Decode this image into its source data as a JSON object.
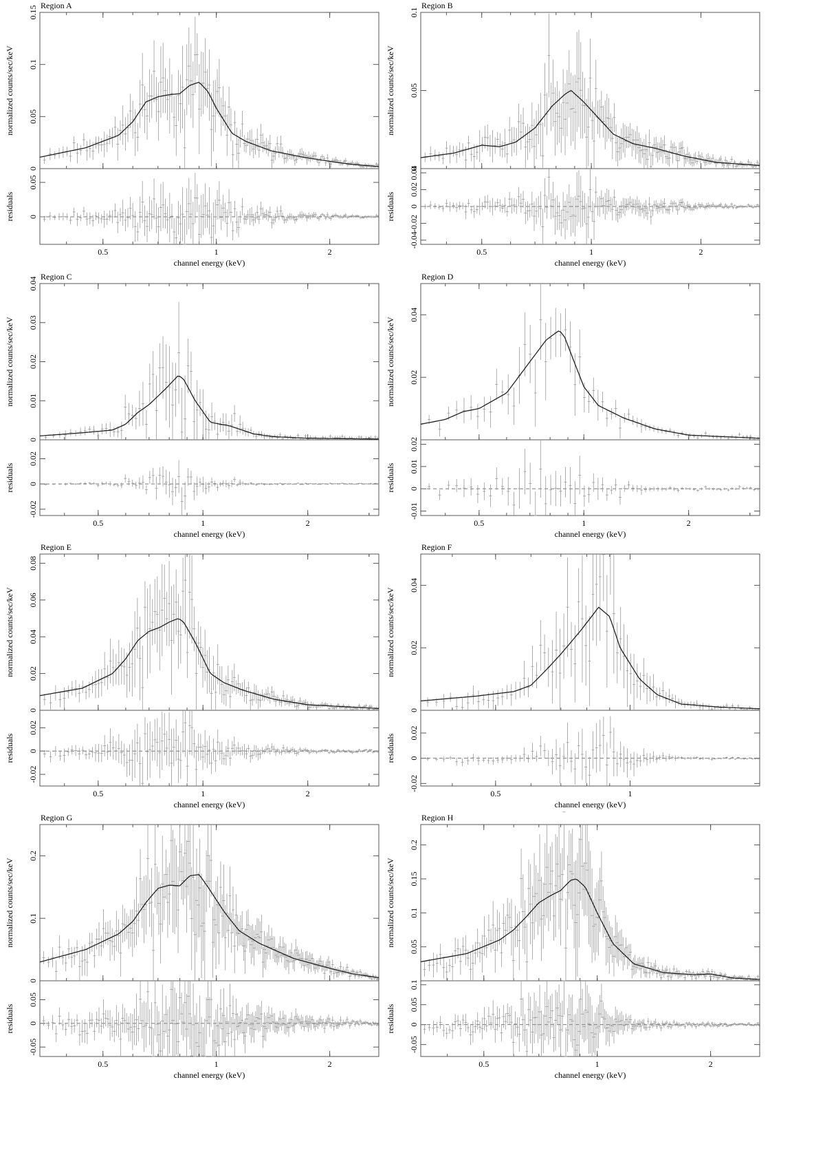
{
  "figure": {
    "xlabel": "channel energy (keV)",
    "ylabel_main": "normalized counts/sec/keV",
    "ylabel_residual": "residuals"
  },
  "chart_data": [
    {
      "title": "Region A",
      "type": "line",
      "x_scale": "log",
      "xlim": [
        0.34,
        2.7
      ],
      "xticks": [
        0.5,
        1,
        2
      ],
      "xticklabels": [
        "0.5",
        "1",
        "2"
      ],
      "ylim": [
        0,
        0.15
      ],
      "yticks": [
        0,
        0.05,
        0.1,
        0.15
      ],
      "yticklabels": [
        "0",
        "0.05",
        "0.1",
        "0.15"
      ],
      "rlim": [
        -0.04,
        0.07
      ],
      "rticks": [
        0,
        0.05
      ],
      "rticklabels": [
        "0",
        "0.05"
      ],
      "model": {
        "x": [
          0.34,
          0.45,
          0.55,
          0.6,
          0.65,
          0.7,
          0.75,
          0.8,
          0.85,
          0.9,
          0.95,
          1.0,
          1.1,
          1.2,
          1.4,
          1.7,
          2.0,
          2.3,
          2.7
        ],
        "y": [
          0.011,
          0.02,
          0.032,
          0.045,
          0.064,
          0.069,
          0.071,
          0.072,
          0.08,
          0.083,
          0.074,
          0.058,
          0.034,
          0.026,
          0.017,
          0.011,
          0.007,
          0.004,
          0.002
        ]
      },
      "noise": 0.3,
      "points": 160,
      "seed": 11
    },
    {
      "title": "Region B",
      "type": "line",
      "x_scale": "log",
      "xlim": [
        0.34,
        2.9
      ],
      "xticks": [
        0.5,
        1,
        2
      ],
      "xticklabels": [
        "0.5",
        "1",
        "2"
      ],
      "ylim": [
        0,
        0.1
      ],
      "yticks": [
        0,
        0.05,
        0.1
      ],
      "yticklabels": [
        "0",
        "0.05",
        "0.1"
      ],
      "rlim": [
        -0.045,
        0.045
      ],
      "rticks": [
        -0.04,
        -0.02,
        0,
        0.02,
        0.04
      ],
      "rticklabels": [
        "-0.04",
        "-0.02",
        "0",
        "0.02",
        "0.04"
      ],
      "model": {
        "x": [
          0.34,
          0.42,
          0.5,
          0.56,
          0.62,
          0.7,
          0.78,
          0.85,
          0.88,
          0.95,
          1.05,
          1.15,
          1.3,
          1.5,
          1.8,
          2.2,
          2.9
        ],
        "y": [
          0.007,
          0.01,
          0.015,
          0.014,
          0.017,
          0.026,
          0.04,
          0.048,
          0.05,
          0.043,
          0.032,
          0.022,
          0.016,
          0.013,
          0.008,
          0.004,
          0.002
        ]
      },
      "noise": 0.4,
      "points": 170,
      "seed": 23
    },
    {
      "title": "Region C",
      "type": "line",
      "x_scale": "log",
      "xlim": [
        0.34,
        3.2
      ],
      "xticks": [
        0.5,
        1,
        2
      ],
      "xticklabels": [
        "0.5",
        "1",
        "2"
      ],
      "ylim": [
        0,
        0.04
      ],
      "yticks": [
        0,
        0.01,
        0.02,
        0.03,
        0.04
      ],
      "yticklabels": [
        "0",
        "0.01",
        "0.02",
        "0.03",
        "0.04"
      ],
      "rlim": [
        -0.025,
        0.035
      ],
      "rticks": [
        -0.02,
        0,
        0.02
      ],
      "rticklabels": [
        "-0.02",
        "0",
        "0.02"
      ],
      "model": {
        "x": [
          0.34,
          0.45,
          0.55,
          0.6,
          0.65,
          0.7,
          0.78,
          0.85,
          0.88,
          0.95,
          1.05,
          1.2,
          1.4,
          1.6,
          2.0,
          3.2
        ],
        "y": [
          0.001,
          0.0018,
          0.0025,
          0.004,
          0.007,
          0.009,
          0.013,
          0.0165,
          0.0155,
          0.01,
          0.0045,
          0.0035,
          0.0015,
          0.0008,
          0.0004,
          0.0002
        ]
      },
      "noise": 0.5,
      "points": 110,
      "seed": 37
    },
    {
      "title": "Region D",
      "type": "line",
      "x_scale": "log",
      "xlim": [
        0.34,
        3.2
      ],
      "xticks": [
        0.5,
        1,
        2
      ],
      "xticklabels": [
        "0.5",
        "1",
        "2"
      ],
      "ylim": [
        0,
        0.05
      ],
      "yticks": [
        0.02,
        0.04
      ],
      "yticklabels": [
        "0.02",
        "0.04"
      ],
      "rlim": [
        -0.012,
        0.022
      ],
      "rticks": [
        -0.01,
        0,
        0.01,
        0.02
      ],
      "rticklabels": [
        "-0.01",
        "0",
        "0.01",
        "0.02"
      ],
      "model": {
        "x": [
          0.34,
          0.4,
          0.45,
          0.5,
          0.6,
          0.7,
          0.78,
          0.85,
          0.88,
          0.93,
          1.0,
          1.1,
          1.3,
          1.6,
          2.0,
          3.2
        ],
        "y": [
          0.005,
          0.0065,
          0.009,
          0.01,
          0.015,
          0.025,
          0.032,
          0.035,
          0.033,
          0.026,
          0.017,
          0.011,
          0.007,
          0.0035,
          0.0015,
          0.0005
        ]
      },
      "noise": 0.25,
      "points": 70,
      "seed": 41
    },
    {
      "title": "Region E",
      "type": "line",
      "x_scale": "log",
      "xlim": [
        0.34,
        3.2
      ],
      "xticks": [
        0.5,
        1,
        2
      ],
      "xticklabels": [
        "0.5",
        "1",
        "2"
      ],
      "ylim": [
        0,
        0.085
      ],
      "yticks": [
        0,
        0.02,
        0.04,
        0.06,
        0.08
      ],
      "yticklabels": [
        "0",
        "0.02",
        "0.04",
        "0.06",
        "0.08"
      ],
      "rlim": [
        -0.03,
        0.035
      ],
      "rticks": [
        -0.02,
        0,
        0.02
      ],
      "rticklabels": [
        "-0.02",
        "0",
        "0.02"
      ],
      "model": {
        "x": [
          0.34,
          0.45,
          0.55,
          0.6,
          0.65,
          0.7,
          0.75,
          0.8,
          0.85,
          0.88,
          0.95,
          1.05,
          1.15,
          1.3,
          1.6,
          2.0,
          3.2
        ],
        "y": [
          0.008,
          0.012,
          0.02,
          0.028,
          0.038,
          0.043,
          0.045,
          0.048,
          0.05,
          0.048,
          0.037,
          0.02,
          0.015,
          0.011,
          0.006,
          0.003,
          0.001
        ]
      },
      "noise": 0.35,
      "points": 150,
      "seed": 53
    },
    {
      "title": "Region F",
      "type": "line",
      "x_scale": "log",
      "xlim": [
        0.34,
        1.95
      ],
      "xticks": [
        0.5,
        1
      ],
      "xticklabels": [
        "0.5",
        "1"
      ],
      "ylim": [
        0,
        0.05
      ],
      "yticks": [
        0,
        0.02,
        0.04
      ],
      "yticklabels": [
        "0",
        "0.02",
        "0.04"
      ],
      "rlim": [
        -0.022,
        0.038
      ],
      "rticks": [
        -0.02,
        0,
        0.02
      ],
      "rticklabels": [
        "-0.02",
        "0",
        "0.02"
      ],
      "model": {
        "x": [
          0.34,
          0.45,
          0.55,
          0.6,
          0.65,
          0.7,
          0.77,
          0.82,
          0.85,
          0.9,
          0.95,
          1.05,
          1.15,
          1.3,
          1.6,
          1.95
        ],
        "y": [
          0.003,
          0.0045,
          0.006,
          0.008,
          0.013,
          0.018,
          0.025,
          0.03,
          0.033,
          0.03,
          0.02,
          0.01,
          0.005,
          0.002,
          0.001,
          0.0005
        ]
      },
      "noise": 0.45,
      "points": 90,
      "seed": 67
    },
    {
      "title": "Region G",
      "type": "line",
      "x_scale": "log",
      "xlim": [
        0.34,
        2.7
      ],
      "xticks": [
        0.5,
        1,
        2
      ],
      "xticklabels": [
        "0.5",
        "1",
        "2"
      ],
      "ylim": [
        0,
        0.25
      ],
      "yticks": [
        0,
        0.1,
        0.2
      ],
      "yticklabels": [
        "0",
        "0.1",
        "0.2"
      ],
      "rlim": [
        -0.07,
        0.09
      ],
      "rticks": [
        -0.05,
        0,
        0.05
      ],
      "rticklabels": [
        "-0.05",
        "0",
        "0.05"
      ],
      "model": {
        "x": [
          0.34,
          0.45,
          0.55,
          0.6,
          0.65,
          0.7,
          0.75,
          0.8,
          0.85,
          0.9,
          0.95,
          1.05,
          1.15,
          1.3,
          1.6,
          2.0,
          2.3,
          2.7
        ],
        "y": [
          0.03,
          0.05,
          0.075,
          0.095,
          0.125,
          0.148,
          0.153,
          0.152,
          0.168,
          0.17,
          0.15,
          0.11,
          0.08,
          0.06,
          0.036,
          0.02,
          0.011,
          0.005
        ]
      },
      "noise": 0.3,
      "points": 200,
      "seed": 79
    },
    {
      "title": "Region H",
      "type": "line",
      "x_scale": "log",
      "xlim": [
        0.34,
        2.7
      ],
      "xticks": [
        0.5,
        1,
        2
      ],
      "xticklabels": [
        "0.5",
        "1",
        "2"
      ],
      "ylim": [
        0,
        0.23
      ],
      "yticks": [
        0.05,
        0.1,
        0.15,
        0.2
      ],
      "yticklabels": [
        "0.05",
        "0.1",
        "0.15",
        "0.2"
      ],
      "rlim": [
        -0.08,
        0.11
      ],
      "rticks": [
        -0.05,
        0,
        0.05,
        0.1
      ],
      "rticklabels": [
        "-0.05",
        "0",
        "0.05",
        "0.1"
      ],
      "model": {
        "x": [
          0.34,
          0.45,
          0.55,
          0.6,
          0.65,
          0.7,
          0.75,
          0.8,
          0.85,
          0.88,
          0.93,
          1.0,
          1.1,
          1.25,
          1.5,
          1.8,
          2.0,
          2.3,
          2.7
        ],
        "y": [
          0.028,
          0.04,
          0.06,
          0.075,
          0.095,
          0.115,
          0.125,
          0.133,
          0.148,
          0.15,
          0.138,
          0.1,
          0.055,
          0.025,
          0.012,
          0.009,
          0.01,
          0.004,
          0.002
        ]
      },
      "noise": 0.35,
      "points": 200,
      "seed": 97
    }
  ]
}
